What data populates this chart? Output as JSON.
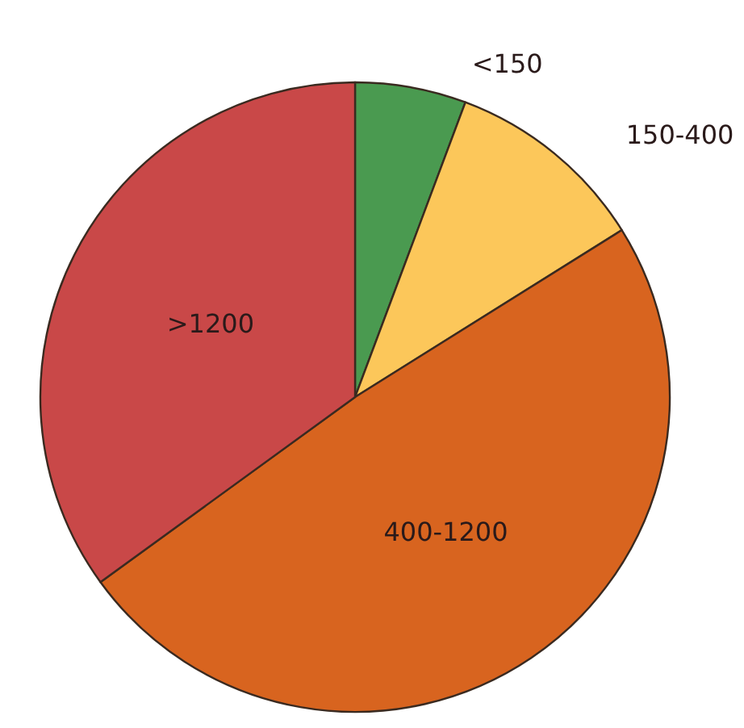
{
  "chart_data": {
    "type": "pie",
    "categories": [
      "<150",
      "150-400",
      "400-1200",
      ">1200"
    ],
    "values": [
      5.7,
      10.4,
      48.9,
      35.0
    ],
    "colors": [
      "#4a9a50",
      "#fcc75a",
      "#d8641f",
      "#c94848"
    ],
    "legend": false
  }
}
